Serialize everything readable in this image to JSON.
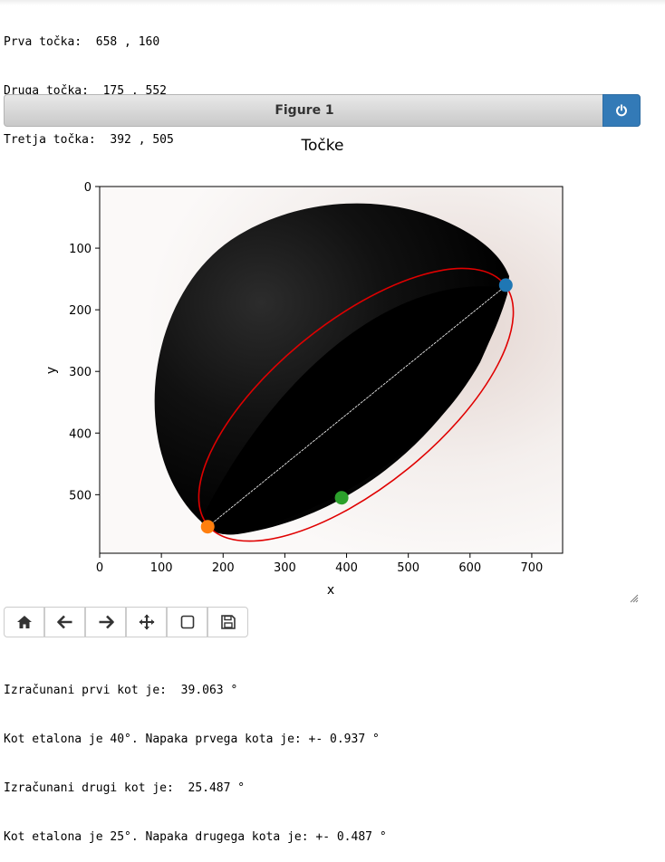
{
  "top_output": {
    "lines": [
      "Prva točka:  658 , 160",
      "Druga točka:  175 , 552",
      "Tretja točka:  392 , 505"
    ]
  },
  "figure": {
    "header_title": "Figure 1",
    "icons": {
      "power": "power-icon",
      "resize": "resize-handle-icon"
    },
    "colors": {
      "header_button": "#337ab7"
    }
  },
  "toolbar": {
    "buttons": [
      {
        "name": "home-button",
        "icon": "home-icon"
      },
      {
        "name": "back-button",
        "icon": "arrow-left-icon"
      },
      {
        "name": "forward-button",
        "icon": "arrow-right-icon"
      },
      {
        "name": "pan-button",
        "icon": "move-icon"
      },
      {
        "name": "zoom-button",
        "icon": "zoom-rect-icon"
      },
      {
        "name": "save-button",
        "icon": "save-icon"
      }
    ]
  },
  "chart_data": {
    "type": "scatter",
    "title": "Točke",
    "xlabel": "x",
    "ylabel": "y",
    "xlim": [
      0,
      750
    ],
    "ylim": [
      595,
      0
    ],
    "x_ticks": [
      "0",
      "100",
      "200",
      "300",
      "400",
      "500",
      "600",
      "700"
    ],
    "y_ticks": [
      "0",
      "100",
      "200",
      "300",
      "400",
      "500"
    ],
    "y_inverted": true,
    "background": "image of a black hemispherical object",
    "points": [
      {
        "x": 658,
        "y": 160,
        "color": "#1f77b4"
      },
      {
        "x": 175,
        "y": 552,
        "color": "#ff7f0e"
      },
      {
        "x": 392,
        "y": 505,
        "color": "#2ca02c"
      }
    ],
    "ellipse_color": "#e00000",
    "line_color": "#ffffff"
  },
  "bottom_output": {
    "lines": [
      "Izračunani prvi kot je:  39.063 °",
      "Kot etalona je 40°. Napaka prvega kota je: +- 0.937 °",
      "Izračunani drugi kot je:  25.487 °",
      "Kot etalona je 25°. Napaka drugega kota je: +- 0.487 °"
    ]
  }
}
